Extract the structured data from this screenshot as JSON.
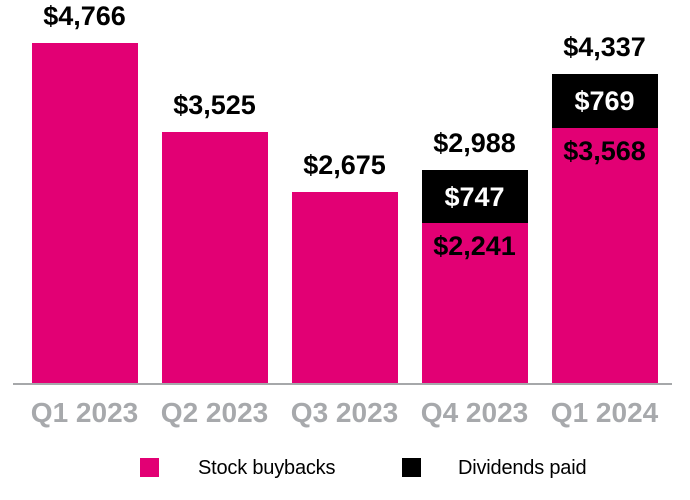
{
  "chart_data": {
    "type": "bar",
    "stacked": true,
    "categories": [
      "Q1 2023",
      "Q2 2023",
      "Q3 2023",
      "Q4 2023",
      "Q1 2024"
    ],
    "series": [
      {
        "name": "Stock buybacks",
        "color": "#e20074",
        "label_color": "#000000",
        "values": [
          4766,
          3525,
          2675,
          2241,
          3568
        ],
        "segment_labels": [
          "",
          "",
          "",
          "$2,241",
          "$3,568"
        ]
      },
      {
        "name": "Dividends paid",
        "color": "#000000",
        "label_color": "#ffffff",
        "values": [
          0,
          0,
          0,
          747,
          769
        ],
        "segment_labels": [
          "",
          "",
          "",
          "$747",
          "$769"
        ]
      }
    ],
    "totals": [
      4766,
      3525,
      2675,
      2988,
      4337
    ],
    "total_labels": [
      "$4,766",
      "$3,525",
      "$2,675",
      "$2,988",
      "$4,337"
    ],
    "ylim": [
      0,
      4766
    ],
    "grid": false,
    "legend_position": "bottom",
    "x_tick_color": "#a7a9ac",
    "axis_line_color": "#a6a8aa",
    "total_label_color": "#000000"
  },
  "legend": {
    "items": [
      {
        "label": "Stock buybacks",
        "color": "#e20074"
      },
      {
        "label": "Dividends paid",
        "color": "#000000"
      }
    ]
  }
}
